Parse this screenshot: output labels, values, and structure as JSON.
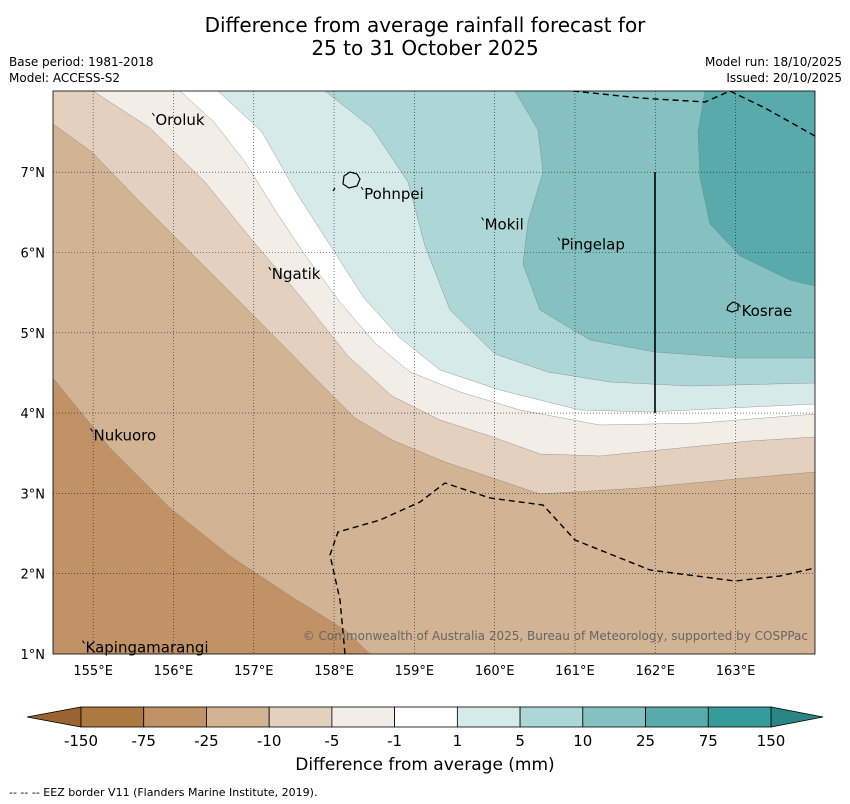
{
  "title": {
    "line1": "Difference from average rainfall forecast for",
    "line2": "25 to 31 October 2025"
  },
  "meta": {
    "base_period": "Base period: 1981-2018",
    "model": "Model: ACCESS-S2",
    "model_run": "Model run: 18/10/2025",
    "issued": "Issued: 20/10/2025"
  },
  "map": {
    "lat_labels": [
      "7°N",
      "6°N",
      "5°N",
      "4°N",
      "3°N",
      "2°N",
      "1°N"
    ],
    "lon_labels": [
      "155°E",
      "156°E",
      "157°E",
      "158°E",
      "159°E",
      "160°E",
      "161°E",
      "162°E",
      "163°E"
    ],
    "places": [
      {
        "name": "Oroluk",
        "lon": 155.75,
        "lat": 7.65
      },
      {
        "name": "Pohnpei",
        "lon": 158.35,
        "lat": 6.73
      },
      {
        "name": "Mokil",
        "lon": 159.85,
        "lat": 6.35
      },
      {
        "name": "Pingelap",
        "lon": 160.8,
        "lat": 6.1
      },
      {
        "name": "Ngatik",
        "lon": 157.2,
        "lat": 5.73
      },
      {
        "name": "Kosrae",
        "lon": 163.05,
        "lat": 5.27
      },
      {
        "name": "Nukuoro",
        "lon": 154.98,
        "lat": 3.72
      },
      {
        "name": "Kapingamarangi",
        "lon": 154.88,
        "lat": 1.08
      }
    ],
    "copyright": "© Commonwealth of Australia 2025, Bureau of Meteorology, supported by COSPPac"
  },
  "colorbar": {
    "ticks": [
      "-150",
      "-75",
      "-25",
      "-10",
      "-5",
      "-1",
      "1",
      "5",
      "10",
      "25",
      "75",
      "150"
    ],
    "colors": [
      "#ae7841",
      "#c09266",
      "#d2b393",
      "#e3d0be",
      "#f2ede6",
      "#ffffff",
      "#d6eaea",
      "#add6d6",
      "#85c1c1",
      "#59aaaa",
      "#359b9b"
    ],
    "under_color": "#9a6432",
    "over_color": "#2a8585",
    "label": "Difference from average (mm)"
  },
  "footnote": "--  --  -- EEZ border V11 (Flanders Marine Institute, 2019)."
}
